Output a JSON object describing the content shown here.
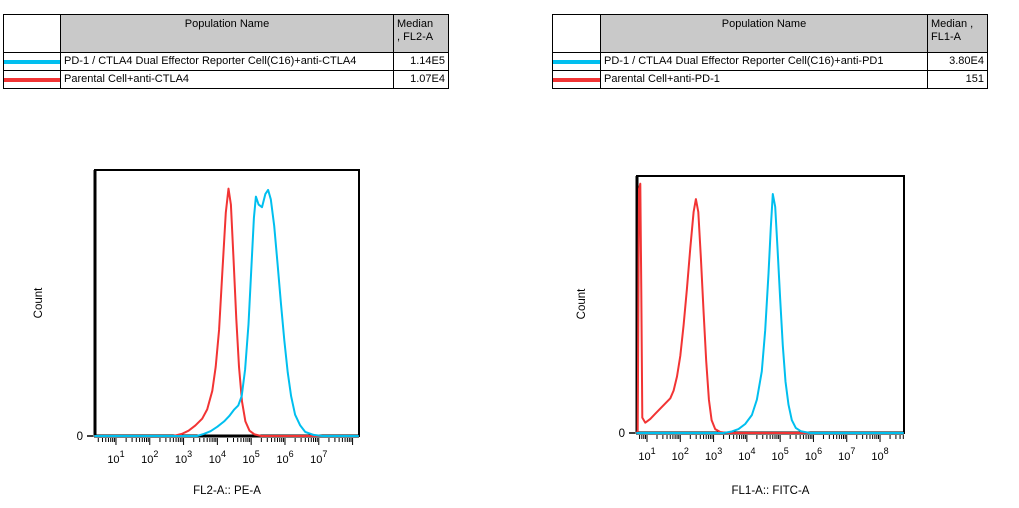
{
  "colors": {
    "series_cyan": "#00bfef",
    "series_red": "#f23434",
    "table_header_bg": "#c9c9c9",
    "axis": "#000000"
  },
  "tables": [
    {
      "header": {
        "population": "Population Name",
        "median_line1": "Median",
        "median_line2": ", FL2-A"
      },
      "rows": [
        {
          "color": "#00bfef",
          "name": "PD-1 / CTLA4 Dual Effector Reporter Cell(C16)+anti-CTLA4",
          "median": "1.14E5"
        },
        {
          "color": "#f23434",
          "name": "Parental Cell+anti-CTLA4",
          "median": "1.07E4"
        }
      ]
    },
    {
      "header": {
        "population": "Population Name",
        "median_line1": "Median ,",
        "median_line2": "FL1-A"
      },
      "rows": [
        {
          "color": "#00bfef",
          "name": "PD-1 / CTLA4 Dual Effector Reporter Cell(C16)+anti-PD1",
          "median": "3.80E4"
        },
        {
          "color": "#f23434",
          "name": "Parental Cell+anti-PD-1",
          "median": "151"
        }
      ]
    }
  ],
  "chart_data": [
    {
      "type": "line",
      "subtype": "flow-cytometry-histogram",
      "title": "",
      "xlabel": "FL2-A:: PE-A",
      "ylabel": "Count",
      "x_scale": "log10",
      "x_tick_exponents": [
        1,
        2,
        3,
        4,
        5,
        6,
        7
      ],
      "x_range_decades": [
        0.38,
        8.19
      ],
      "y_axis": {
        "zero_label": "0",
        "units": "normalized count fraction 0-1"
      },
      "grid": false,
      "legend_position": "table-above",
      "series": [
        {
          "name": "PD-1 / CTLA4 Dual Effector Reporter Cell(C16)+anti-CTLA4",
          "color": "#00bfef",
          "median": "1.14E5",
          "points": [
            [
              3.4,
              0
            ],
            [
              3.6,
              0.008
            ],
            [
              3.8,
              0.018
            ],
            [
              4.0,
              0.035
            ],
            [
              4.2,
              0.055
            ],
            [
              4.35,
              0.075
            ],
            [
              4.5,
              0.1
            ],
            [
              4.62,
              0.115
            ],
            [
              4.72,
              0.15
            ],
            [
              4.82,
              0.25
            ],
            [
              4.92,
              0.42
            ],
            [
              5.0,
              0.62
            ],
            [
              5.08,
              0.82
            ],
            [
              5.14,
              0.9
            ],
            [
              5.22,
              0.87
            ],
            [
              5.32,
              0.86
            ],
            [
              5.42,
              0.91
            ],
            [
              5.5,
              0.925
            ],
            [
              5.58,
              0.89
            ],
            [
              5.68,
              0.79
            ],
            [
              5.78,
              0.65
            ],
            [
              5.88,
              0.5
            ],
            [
              5.98,
              0.36
            ],
            [
              6.08,
              0.24
            ],
            [
              6.18,
              0.15
            ],
            [
              6.3,
              0.08
            ],
            [
              6.45,
              0.04
            ],
            [
              6.6,
              0.015
            ],
            [
              6.85,
              0.004
            ],
            [
              7.1,
              0
            ]
          ]
        },
        {
          "name": "Parental Cell+anti-CTLA4",
          "color": "#f23434",
          "median": "1.07E4",
          "points": [
            [
              2.7,
              0
            ],
            [
              2.95,
              0.008
            ],
            [
              3.15,
              0.02
            ],
            [
              3.35,
              0.04
            ],
            [
              3.55,
              0.065
            ],
            [
              3.7,
              0.1
            ],
            [
              3.85,
              0.17
            ],
            [
              3.95,
              0.26
            ],
            [
              4.05,
              0.4
            ],
            [
              4.15,
              0.62
            ],
            [
              4.25,
              0.84
            ],
            [
              4.33,
              0.93
            ],
            [
              4.4,
              0.87
            ],
            [
              4.48,
              0.66
            ],
            [
              4.56,
              0.44
            ],
            [
              4.64,
              0.26
            ],
            [
              4.73,
              0.13
            ],
            [
              4.83,
              0.055
            ],
            [
              4.95,
              0.02
            ],
            [
              5.1,
              0.006
            ],
            [
              5.3,
              0
            ]
          ]
        }
      ]
    },
    {
      "type": "line",
      "subtype": "flow-cytometry-histogram",
      "title": "",
      "xlabel": "FL1-A:: FITC-A",
      "ylabel": "Count",
      "x_scale": "log10",
      "x_tick_exponents": [
        1,
        2,
        3,
        4,
        5,
        6,
        7,
        8
      ],
      "x_range_decades": [
        0.7,
        8.72
      ],
      "y_axis": {
        "zero_label": "0",
        "units": "normalized count fraction 0-1"
      },
      "grid": false,
      "legend_position": "table-above",
      "series": [
        {
          "name": "PD-1 / CTLA4 Dual Effector Reporter Cell(C16)+anti-PD1",
          "color": "#00bfef",
          "median": "3.80E4",
          "points": [
            [
              3.3,
              0
            ],
            [
              3.55,
              0.006
            ],
            [
              3.75,
              0.015
            ],
            [
              3.95,
              0.035
            ],
            [
              4.15,
              0.07
            ],
            [
              4.3,
              0.13
            ],
            [
              4.45,
              0.24
            ],
            [
              4.55,
              0.4
            ],
            [
              4.65,
              0.62
            ],
            [
              4.72,
              0.8
            ],
            [
              4.78,
              0.93
            ],
            [
              4.85,
              0.88
            ],
            [
              4.92,
              0.72
            ],
            [
              5.0,
              0.52
            ],
            [
              5.08,
              0.34
            ],
            [
              5.16,
              0.2
            ],
            [
              5.25,
              0.11
            ],
            [
              5.35,
              0.05
            ],
            [
              5.47,
              0.02
            ],
            [
              5.62,
              0.007
            ],
            [
              5.9,
              0
            ]
          ]
        },
        {
          "name": "Parental Cell+anti-PD-1",
          "color": "#f23434",
          "median": "151",
          "points": [
            [
              0.72,
              0.01
            ],
            [
              0.76,
              0.95
            ],
            [
              0.8,
              0.97
            ],
            [
              0.83,
              0.55
            ],
            [
              0.86,
              0.06
            ],
            [
              0.95,
              0.04
            ],
            [
              1.1,
              0.055
            ],
            [
              1.25,
              0.075
            ],
            [
              1.4,
              0.095
            ],
            [
              1.55,
              0.115
            ],
            [
              1.7,
              0.135
            ],
            [
              1.8,
              0.165
            ],
            [
              1.9,
              0.22
            ],
            [
              2.0,
              0.3
            ],
            [
              2.1,
              0.42
            ],
            [
              2.2,
              0.56
            ],
            [
              2.3,
              0.72
            ],
            [
              2.4,
              0.86
            ],
            [
              2.47,
              0.91
            ],
            [
              2.54,
              0.86
            ],
            [
              2.62,
              0.68
            ],
            [
              2.7,
              0.47
            ],
            [
              2.78,
              0.28
            ],
            [
              2.86,
              0.13
            ],
            [
              2.94,
              0.05
            ],
            [
              3.05,
              0.015
            ],
            [
              3.2,
              0.004
            ],
            [
              3.4,
              0
            ]
          ]
        }
      ]
    }
  ]
}
